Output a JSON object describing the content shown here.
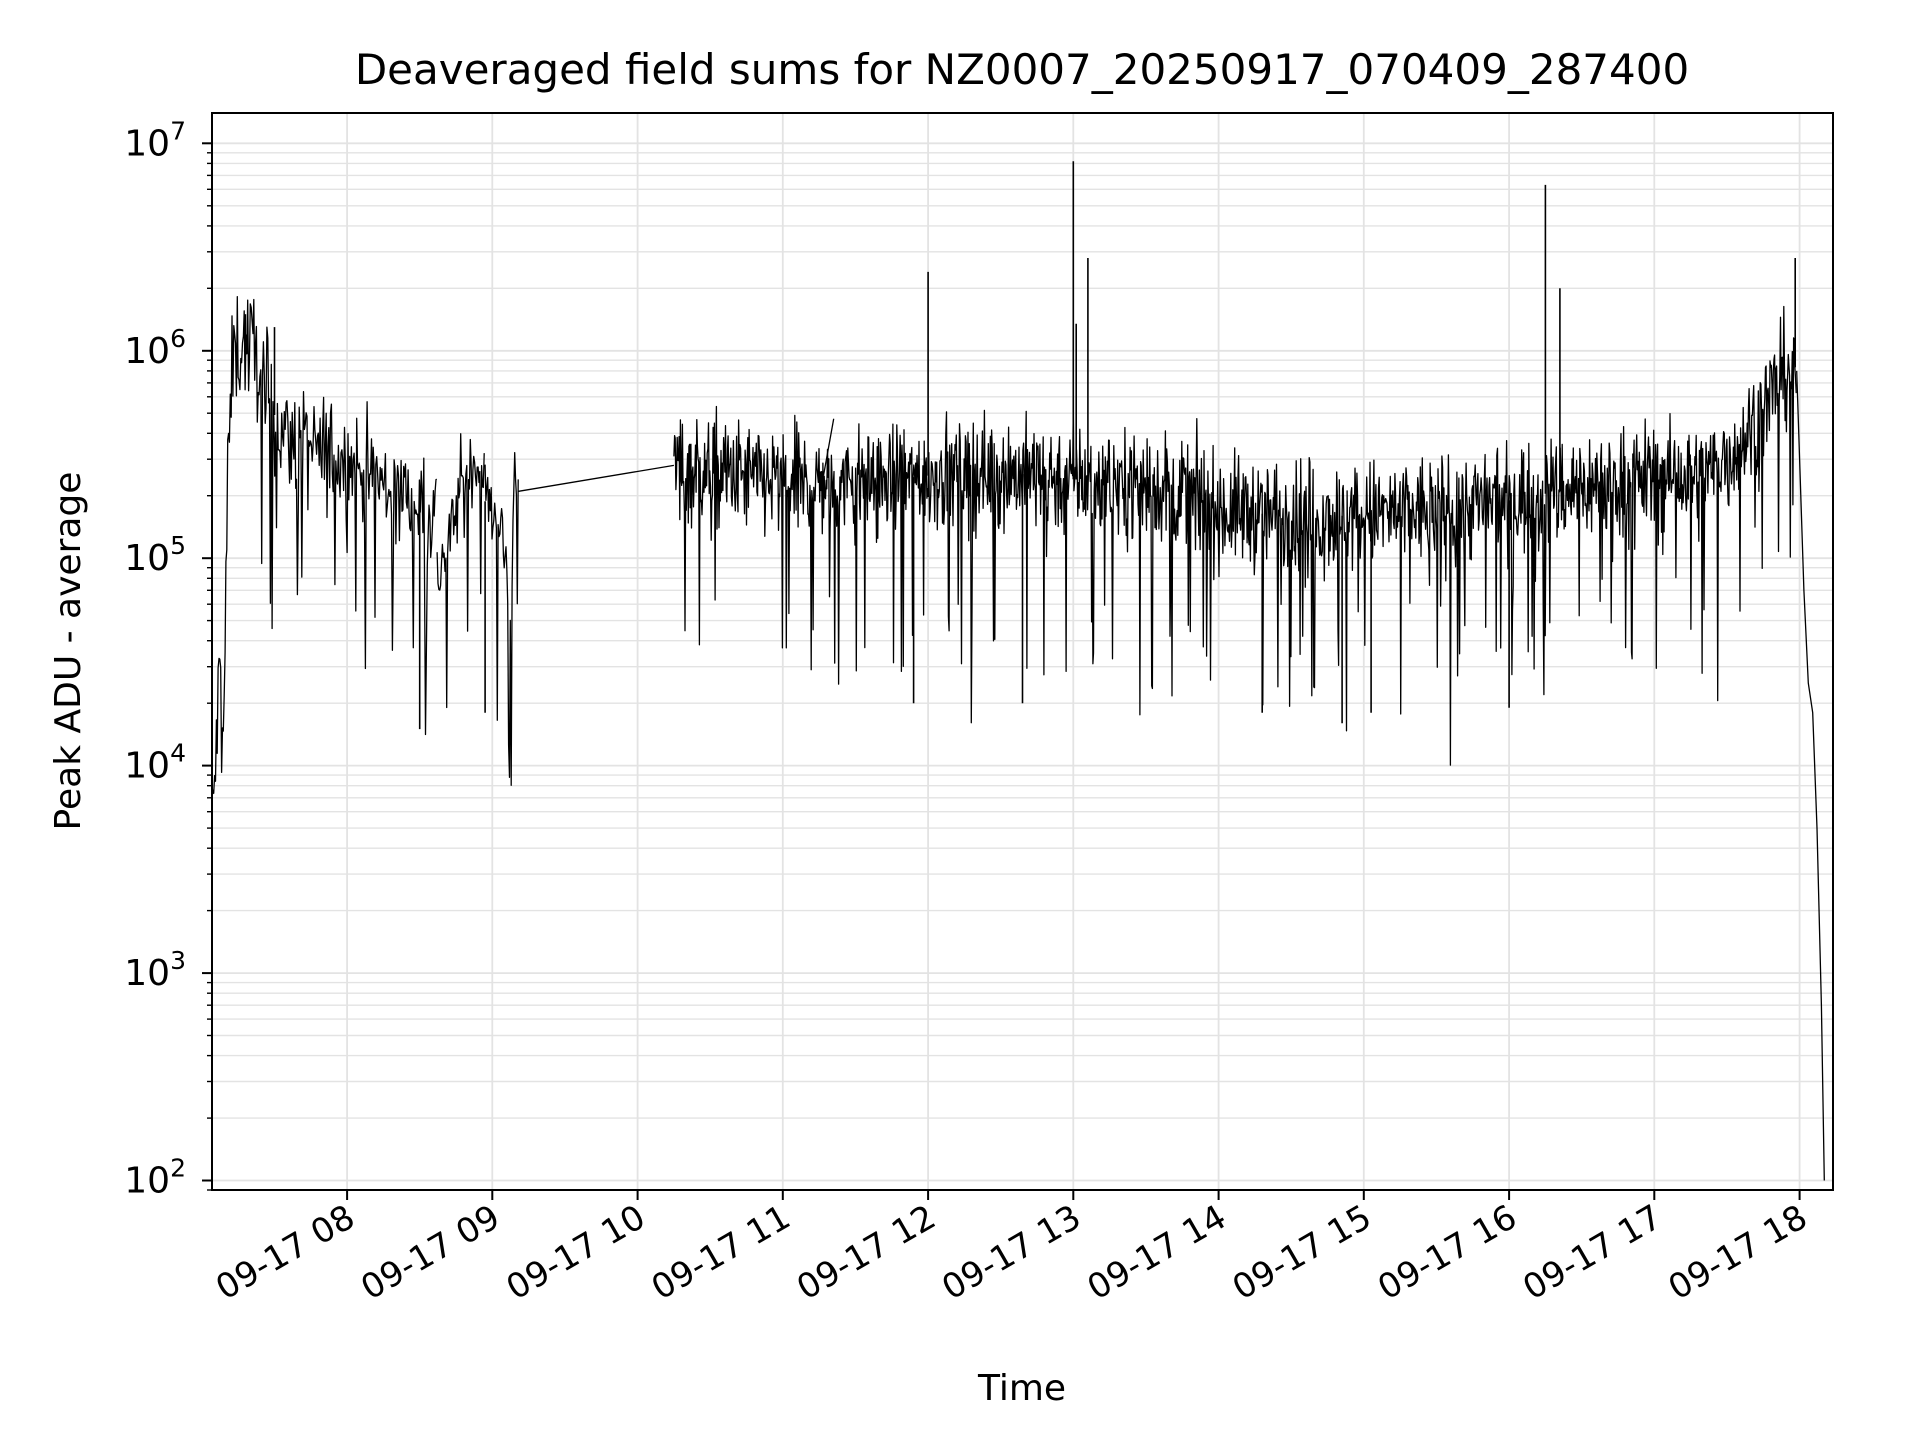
{
  "chart_data": {
    "type": "line",
    "title": "Deaveraged field sums for NZ0007_20250917_070409_287400",
    "xlabel": "Time",
    "ylabel": "Peak ADU - average",
    "yscale": "log",
    "ylim": [
      90,
      14000000
    ],
    "xlim_hours": [
      7.07,
      18.23
    ],
    "grid": true,
    "x_ticks": [
      {
        "hour": 8,
        "label": "09-17 08"
      },
      {
        "hour": 9,
        "label": "09-17 09"
      },
      {
        "hour": 10,
        "label": "09-17 10"
      },
      {
        "hour": 11,
        "label": "09-17 11"
      },
      {
        "hour": 12,
        "label": "09-17 12"
      },
      {
        "hour": 13,
        "label": "09-17 13"
      },
      {
        "hour": 14,
        "label": "09-17 14"
      },
      {
        "hour": 15,
        "label": "09-17 15"
      },
      {
        "hour": 16,
        "label": "09-17 16"
      },
      {
        "hour": 17,
        "label": "09-17 17"
      },
      {
        "hour": 18,
        "label": "09-17 18"
      }
    ],
    "y_ticks": [
      {
        "value": 100,
        "base": "10",
        "exp": "2"
      },
      {
        "value": 1000,
        "base": "10",
        "exp": "3"
      },
      {
        "value": 10000,
        "base": "10",
        "exp": "4"
      },
      {
        "value": 100000,
        "base": "10",
        "exp": "5"
      },
      {
        "value": 1000000,
        "base": "10",
        "exp": "6"
      },
      {
        "value": 10000000,
        "base": "10",
        "exp": "7"
      }
    ],
    "series": [
      {
        "name": "field sums",
        "color": "#000000",
        "segments": [
          {
            "t_start": 7.07,
            "t_end": 8.62,
            "anchors": [
              [
                7.07,
                5000
              ],
              [
                7.1,
                12000
              ],
              [
                7.12,
                28000
              ],
              [
                7.14,
                30000
              ],
              [
                7.15,
                13000
              ],
              [
                7.18,
                300000
              ],
              [
                7.22,
                1000000
              ],
              [
                7.3,
                1100000
              ],
              [
                7.38,
                950000
              ],
              [
                7.45,
                600000
              ],
              [
                7.55,
                400000
              ],
              [
                7.65,
                350000
              ],
              [
                7.8,
                320000
              ],
              [
                8.0,
                300000
              ],
              [
                8.15,
                250000
              ],
              [
                8.3,
                210000
              ],
              [
                8.45,
                190000
              ],
              [
                8.55,
                180000
              ],
              [
                8.62,
                170000
              ]
            ],
            "noise": 0.32
          },
          {
            "t_start": 8.62,
            "t_end": 8.95,
            "anchors": [
              [
                8.62,
                80000
              ],
              [
                8.7,
                120000
              ],
              [
                8.8,
                250000
              ],
              [
                8.9,
                300000
              ],
              [
                8.95,
                250000
              ]
            ],
            "noise": 0.22
          },
          {
            "t_start": 8.95,
            "t_end": 9.18,
            "anchors": [
              [
                8.95,
                200000
              ],
              [
                9.05,
                150000
              ],
              [
                9.13,
                60000
              ],
              [
                9.15,
                280000
              ],
              [
                9.18,
                250000
              ]
            ],
            "noise": 0.18
          }
        ],
        "connectors": [
          [
            [
              9.18,
              210000
            ],
            [
              10.25,
              280000
            ]
          ],
          [
            [
              11.28,
              250000
            ],
            [
              11.35,
              470000
            ]
          ]
        ],
        "dense": {
          "t_start": 10.25,
          "t_end": 17.98,
          "anchors": [
            [
              10.25,
              280000
            ],
            [
              10.5,
              260000
            ],
            [
              11.0,
              230000
            ],
            [
              11.5,
              230000
            ],
            [
              12.0,
              250000
            ],
            [
              12.5,
              260000
            ],
            [
              13.0,
              240000
            ],
            [
              13.5,
              230000
            ],
            [
              13.8,
              200000
            ],
            [
              14.0,
              170000
            ],
            [
              14.5,
              160000
            ],
            [
              15.0,
              160000
            ],
            [
              15.5,
              170000
            ],
            [
              16.0,
              190000
            ],
            [
              16.5,
              220000
            ],
            [
              17.0,
              250000
            ],
            [
              17.3,
              240000
            ],
            [
              17.5,
              300000
            ],
            [
              17.7,
              450000
            ],
            [
              17.85,
              700000
            ],
            [
              17.95,
              900000
            ],
            [
              17.98,
              800000
            ]
          ],
          "noise": 0.3
        },
        "tail": [
          [
            17.98,
            800000
          ],
          [
            18.0,
            300000
          ],
          [
            18.03,
            70000
          ],
          [
            18.06,
            25000
          ],
          [
            18.09,
            18000
          ],
          [
            18.12,
            5000
          ],
          [
            18.15,
            700
          ],
          [
            18.17,
            100
          ]
        ],
        "spikes": [
          [
            7.3,
            1500000
          ],
          [
            7.5,
            1300000
          ],
          [
            8.5,
            15000
          ],
          [
            8.95,
            18000
          ],
          [
            11.9,
            20000
          ],
          [
            12.0,
            2400000
          ],
          [
            12.65,
            20000
          ],
          [
            13.0,
            8200000
          ],
          [
            13.02,
            1350000
          ],
          [
            13.1,
            2800000
          ],
          [
            14.3,
            18000
          ],
          [
            14.85,
            16000
          ],
          [
            15.05,
            18000
          ],
          [
            16.0,
            19000
          ],
          [
            16.25,
            6300000
          ],
          [
            16.35,
            2000000
          ],
          [
            17.97,
            2800000
          ]
        ]
      }
    ]
  }
}
